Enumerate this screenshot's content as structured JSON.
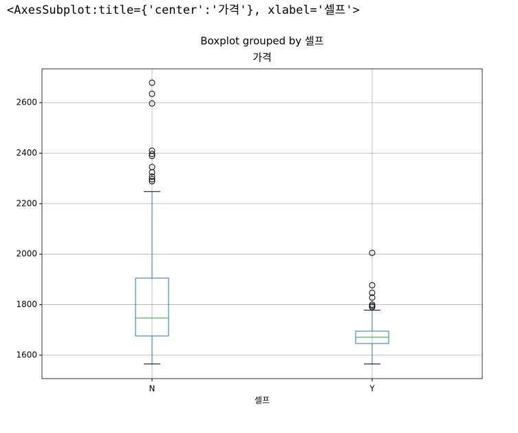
{
  "header": {
    "repr": "<AxesSubplot:title={'center':'가격'}, xlabel='셀프'>"
  },
  "chart_data": {
    "type": "box",
    "title": "Boxplot grouped by 셀프",
    "subtitle": "가격",
    "x_label": "셀프",
    "categories": [
      "N",
      "Y"
    ],
    "boxes": [
      {
        "min": 1565,
        "q1": 1676,
        "median": 1747,
        "q3": 1905,
        "max": 2248,
        "outliers": [
          2679,
          2635,
          2597,
          2410,
          2397,
          2389,
          2345,
          2324,
          2307,
          2297,
          2289
        ]
      },
      {
        "min": 1565,
        "q1": 1646,
        "median": 1671,
        "q3": 1695,
        "max": 1778,
        "outliers": [
          2005,
          1877,
          1847,
          1828,
          1800,
          1795,
          1790
        ]
      }
    ],
    "box_color": "#1f77b4",
    "median_color": "#2ca02c",
    "whisker_color": "#000000",
    "outlier_color": "#000000",
    "ylim": [
      1507,
      2734
    ],
    "yticks": [
      1600,
      1800,
      2000,
      2200,
      2400,
      2600
    ],
    "grid": true
  }
}
